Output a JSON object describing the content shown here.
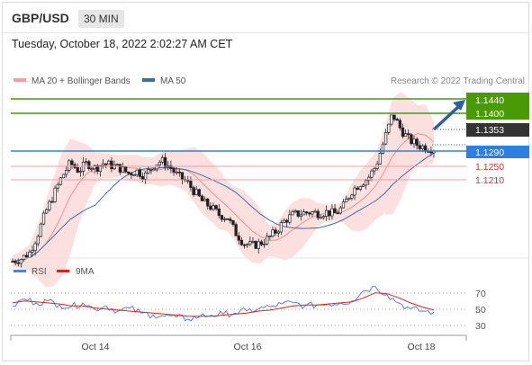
{
  "header": {
    "pair": "GBP/USD",
    "timeframe": "30 MIN"
  },
  "datetime": "Tuesday, October 18, 2022 2:02:27 AM CET",
  "legend": {
    "ma_bb": "MA 20 + Bollinger Bands",
    "ma50": "MA 50",
    "credit": "Research © 2022 Trading Central"
  },
  "levels": {
    "r2": "1.1440",
    "r1": "1.1400",
    "last": "1.1353",
    "pivot": "1.1290",
    "s1": "1.1250",
    "s2": "1.1210"
  },
  "rsi_legend": {
    "rsi": "RSI",
    "ma": "9MA"
  },
  "rsi_axis": [
    "70",
    "50",
    "30"
  ],
  "x_axis": [
    "Oct 14",
    "Oct 16",
    "Oct 18"
  ],
  "colors": {
    "resistance": "#4a9a06",
    "pivot": "#3b7fd0",
    "support": "#e05a5a",
    "last": "#333333",
    "bollinger": "#f9d6d6",
    "ma20": "#f09090",
    "ma50": "#3a6ea5",
    "rsi": "#5b82d6",
    "rsi_ma": "#e02020"
  },
  "chart_data": {
    "type": "line",
    "title": "GBP/USD 30 MIN",
    "series": [
      {
        "name": "MA 20 + Bollinger Bands"
      },
      {
        "name": "MA 50"
      }
    ],
    "price_ylim": [
      1.115,
      1.147
    ],
    "rsi_ylim": [
      20,
      80
    ],
    "close_path": [
      1.1135,
      1.114,
      1.115,
      1.1185,
      1.123,
      1.1265,
      1.13,
      1.1325,
      1.131,
      1.1325,
      1.1315,
      1.1325,
      1.132,
      1.1315,
      1.1305,
      1.131,
      1.13,
      1.132,
      1.133,
      1.1318,
      1.13,
      1.129,
      1.127,
      1.125,
      1.124,
      1.1225,
      1.122,
      1.119,
      1.117,
      1.1165,
      1.117,
      1.118,
      1.1195,
      1.1215,
      1.1225,
      1.1228,
      1.123,
      1.1228,
      1.123,
      1.1227,
      1.124,
      1.127,
      1.1285,
      1.1295,
      1.132,
      1.137,
      1.142,
      1.139,
      1.137,
      1.136,
      1.1355,
      1.1353
    ],
    "rsi_path": [
      55,
      62,
      58,
      60,
      56,
      54,
      58,
      52,
      55,
      50,
      53,
      48,
      46,
      45,
      44,
      42,
      45,
      46,
      47,
      48,
      50,
      52,
      54,
      57,
      58,
      55,
      56,
      57,
      58,
      60,
      70,
      74,
      66,
      58,
      52,
      50,
      49
    ],
    "rsi_ma_path": [
      58,
      60,
      59,
      58,
      57,
      55,
      55,
      53,
      52,
      51,
      50,
      49,
      48,
      47,
      46,
      45,
      45,
      45,
      46,
      47,
      48,
      50,
      51,
      53,
      55,
      56,
      56,
      57,
      58,
      59,
      63,
      68,
      67,
      63,
      58,
      54,
      51
    ]
  }
}
